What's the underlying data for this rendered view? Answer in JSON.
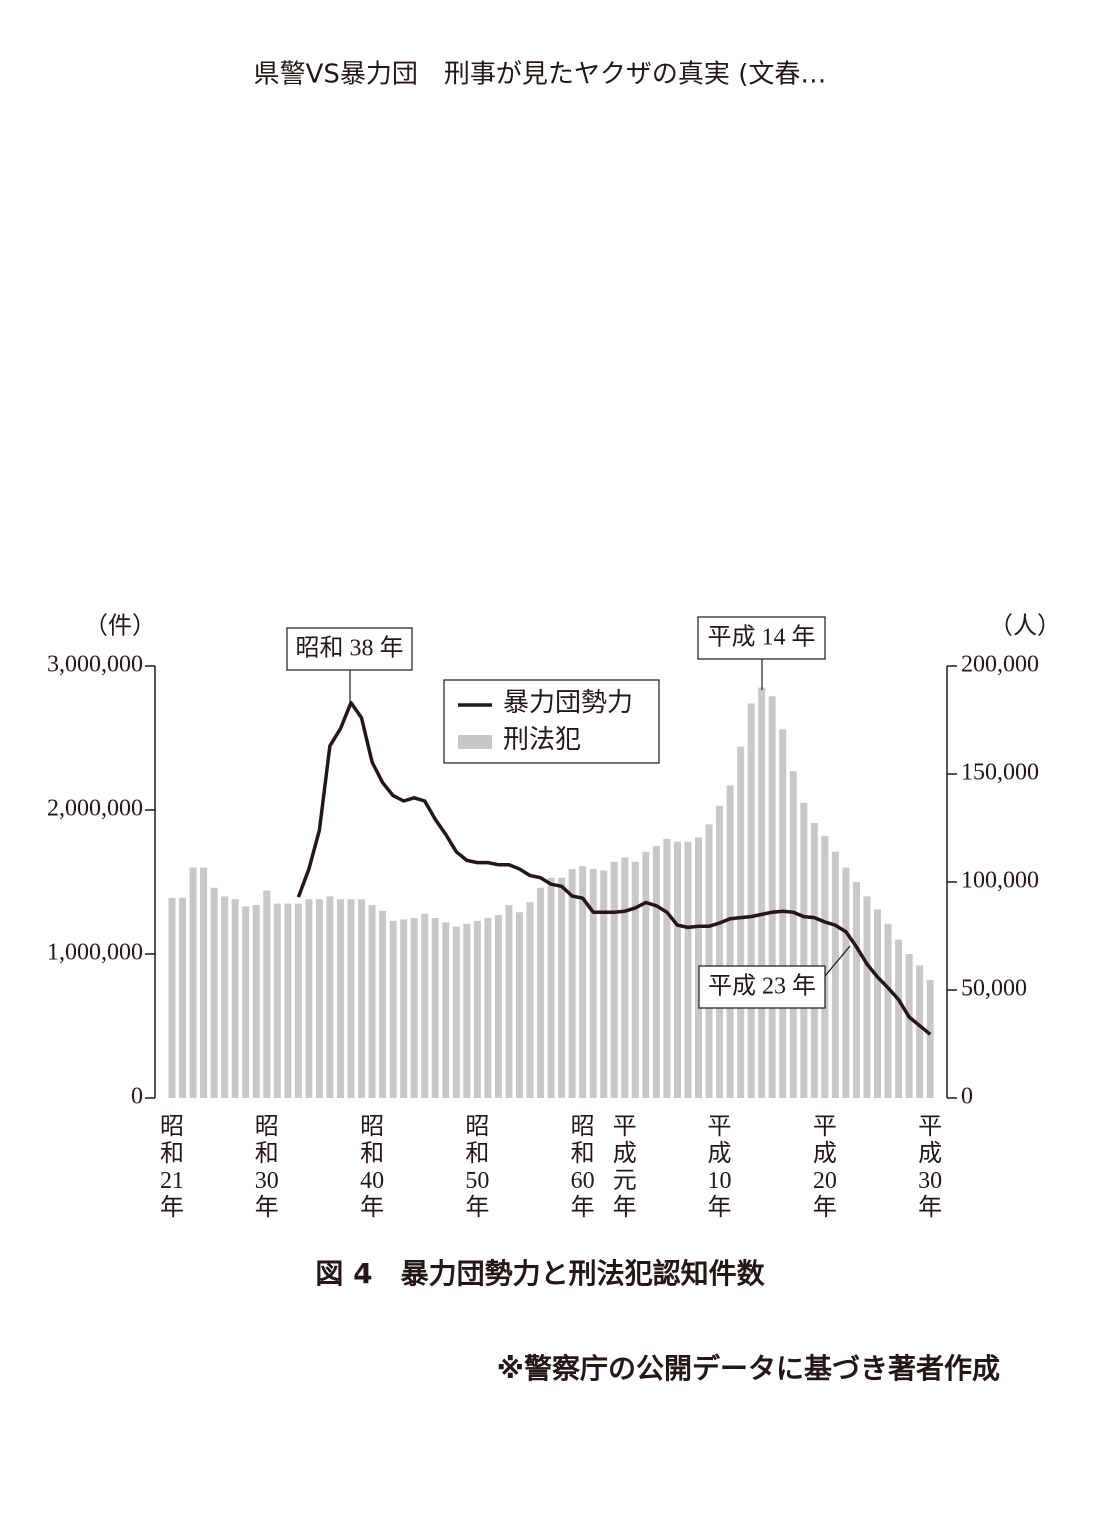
{
  "header": "県警VS暴力団　刑事が見たヤクザの真実 (文春…",
  "chart_data": {
    "type": "bar_line",
    "caption": "図 4　暴力団勢力と刑法犯認知件数",
    "source": "※警察庁の公開データに基づき著者作成",
    "y_unit": "（件）",
    "y2_unit": "（人）",
    "categories": [
      "昭和21年",
      null,
      null,
      null,
      null,
      null,
      null,
      null,
      null,
      "昭和30年",
      null,
      null,
      null,
      null,
      null,
      null,
      null,
      null,
      null,
      "昭和40年",
      null,
      null,
      null,
      null,
      null,
      null,
      null,
      null,
      null,
      "昭和50年",
      null,
      null,
      null,
      null,
      null,
      null,
      null,
      null,
      null,
      "昭和60年",
      null,
      null,
      null,
      "平成元年",
      null,
      null,
      null,
      null,
      null,
      null,
      null,
      null,
      "平成10年",
      null,
      null,
      null,
      null,
      null,
      null,
      null,
      null,
      null,
      "平成20年",
      null,
      null,
      null,
      null,
      null,
      null,
      null,
      null,
      null,
      "平成30年"
    ],
    "ylim": [
      0,
      3000000
    ],
    "yticks": [
      0,
      {
        "value": 1000000,
        "label": "1,000,000"
      },
      {
        "value": 2000000,
        "label": "2,000,000"
      },
      {
        "value": 3000000,
        "label": "3,000,000"
      }
    ],
    "y2lim": [
      0,
      200000
    ],
    "y2ticks": [
      0,
      {
        "value": 50000,
        "label": "50,000"
      },
      {
        "value": 100000,
        "label": "100,000"
      },
      {
        "value": 150000,
        "label": "150,000"
      },
      {
        "value": 200000,
        "label": "200,000"
      }
    ],
    "legend": "top",
    "series": [
      {
        "name": "暴力団勢力",
        "type": "line",
        "axis": "y2",
        "color": "#231815",
        "values": [
          null,
          null,
          null,
          null,
          null,
          null,
          null,
          null,
          null,
          null,
          null,
          null,
          93000,
          106000,
          124000,
          163000,
          171000,
          183000,
          176000,
          155500,
          146000,
          140000,
          137500,
          139000,
          137500,
          129000,
          122000,
          114000,
          110000,
          109000,
          109000,
          108000,
          108000,
          106000,
          103000,
          102000,
          99000,
          98000,
          93500,
          92500,
          86000,
          86000,
          86000,
          86500,
          88000,
          90500,
          89000,
          86000,
          80000,
          79000,
          79500,
          79500,
          81000,
          83000,
          83500,
          84000,
          85000,
          86000,
          86500,
          86000,
          84000,
          83500,
          81500,
          80000,
          77000,
          70000,
          62000,
          56000,
          51000,
          45500,
          37500,
          33500,
          29500
        ]
      },
      {
        "name": "刑法犯",
        "type": "bar",
        "color": "#c8c8c8",
        "values": [
          1390000,
          1390000,
          1600000,
          1600000,
          1460000,
          1400000,
          1380000,
          1330000,
          1340000,
          1440000,
          1350000,
          1350000,
          1350000,
          1380000,
          1380000,
          1400000,
          1380000,
          1380000,
          1380000,
          1340000,
          1300000,
          1230000,
          1240000,
          1250000,
          1280000,
          1250000,
          1220000,
          1190000,
          1210000,
          1230000,
          1250000,
          1270000,
          1340000,
          1290000,
          1360000,
          1460000,
          1530000,
          1530000,
          1590000,
          1610000,
          1590000,
          1580000,
          1640000,
          1670000,
          1640000,
          1710000,
          1750000,
          1800000,
          1780000,
          1780000,
          1810000,
          1900000,
          2030000,
          2170000,
          2440000,
          2740000,
          2850000,
          2790000,
          2560000,
          2270000,
          2050000,
          1910000,
          1820000,
          1710000,
          1600000,
          1500000,
          1400000,
          1310000,
          1210000,
          1100000,
          1000000,
          920000,
          820000
        ]
      }
    ],
    "annotations": [
      "昭和 38 年",
      "平成 14 年",
      "平成 23 年"
    ]
  }
}
